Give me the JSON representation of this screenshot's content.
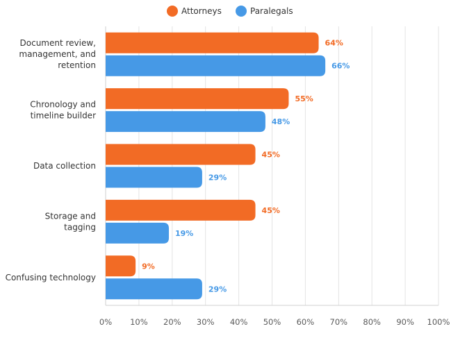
{
  "chart_data": {
    "type": "bar",
    "orientation": "horizontal",
    "categories": [
      [
        "Document review,",
        "management, and",
        "retention"
      ],
      [
        "Chronology and",
        "timeline builder"
      ],
      [
        "Data collection"
      ],
      [
        "Storage and",
        "tagging"
      ],
      [
        "Confusing technology"
      ]
    ],
    "series": [
      {
        "name": "Attorneys",
        "color": "#F26B25",
        "values": [
          64,
          55,
          45,
          45,
          9
        ]
      },
      {
        "name": "Paralegals",
        "color": "#4699E6",
        "values": [
          66,
          48,
          29,
          19,
          29
        ]
      }
    ],
    "xlim": [
      0,
      100
    ],
    "xticks": [
      0,
      10,
      20,
      30,
      40,
      50,
      60,
      70,
      80,
      90,
      100
    ],
    "tick_suffix": "%",
    "value_suffix": "%",
    "grid": true,
    "legend_position": "top"
  }
}
